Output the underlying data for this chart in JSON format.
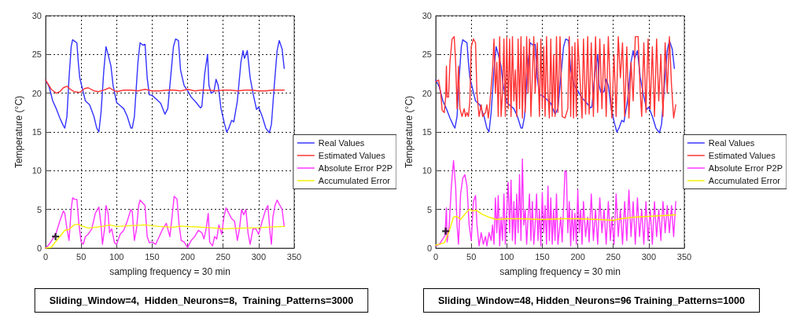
{
  "chart_data": [
    {
      "type": "line",
      "xlabel": "sampling frequency = 30 min",
      "ylabel": "Temperature (°C)",
      "xlim": [
        0,
        350
      ],
      "xticks": [
        0,
        50,
        100,
        150,
        200,
        250,
        300,
        350
      ],
      "ylim": [
        0,
        30
      ],
      "yticks": [
        0,
        5,
        10,
        15,
        20,
        25,
        30
      ],
      "grid": true,
      "legend": "right",
      "marker": "none",
      "line_style": "solid",
      "annotations": [
        "Sliding_Window=4,  Hidden_Neurons=8,  Training_Patterns=3000"
      ],
      "series": [
        {
          "name": "Real Values",
          "color": "#3333ff",
          "x": [
            0,
            5,
            10,
            15,
            20,
            25,
            27,
            30,
            33,
            36,
            38,
            41,
            44,
            46,
            48,
            52,
            56,
            62,
            68,
            72,
            75,
            78,
            82,
            85,
            88,
            92,
            95,
            100,
            105,
            110,
            115,
            120,
            122,
            125,
            130,
            133,
            137,
            140,
            143,
            146,
            150,
            155,
            162,
            168,
            172,
            176,
            180,
            183,
            187,
            190,
            195,
            200,
            205,
            212,
            218,
            220,
            224,
            228,
            230,
            233,
            237,
            240,
            243,
            247,
            252,
            255,
            258,
            262,
            265,
            270,
            275,
            278,
            280,
            284,
            288,
            292,
            297,
            300,
            305,
            310,
            315,
            318,
            322,
            326,
            329,
            333,
            336
          ],
          "values": [
            21.7,
            20.8,
            19,
            18,
            16.8,
            15.8,
            15.5,
            17,
            22,
            26,
            26.9,
            26.7,
            26.5,
            24,
            22,
            20.5,
            19,
            18.5,
            17,
            15.5,
            15,
            17.5,
            23,
            26,
            25,
            23.5,
            21,
            18.8,
            18.4,
            18,
            17,
            15.5,
            15.5,
            17,
            24,
            26.5,
            26.2,
            26.3,
            22,
            19.8,
            19.7,
            19.3,
            18.7,
            17.3,
            18,
            22,
            26,
            27,
            26.8,
            23,
            21,
            20.3,
            19.5,
            18.8,
            18.1,
            18.3,
            22.5,
            25,
            21,
            20,
            20.2,
            21.8,
            21,
            18,
            16,
            15,
            15.5,
            16.5,
            16.3,
            19,
            24,
            25.5,
            24.5,
            25.5,
            22,
            20,
            17.9,
            18.2,
            17,
            15.5,
            14.9,
            16,
            21,
            25.5,
            26.8,
            25.7,
            23.2
          ]
        },
        {
          "name": "Estimated Values",
          "color": "#ff3333",
          "x": [
            0,
            8,
            15,
            20,
            25,
            30,
            35,
            40,
            48,
            55,
            60,
            68,
            75,
            85,
            90,
            95,
            100,
            110,
            120,
            130,
            140,
            150,
            160,
            170,
            180,
            190,
            200,
            210,
            220,
            230,
            240,
            250,
            260,
            270,
            280,
            290,
            300,
            310,
            320,
            336
          ],
          "values": [
            21.7,
            20.5,
            20,
            20.2,
            20.7,
            20.9,
            20.5,
            20.2,
            20.1,
            20.6,
            20.7,
            20.3,
            20.2,
            20.5,
            20.7,
            20.4,
            20.2,
            20.4,
            20.4,
            20.3,
            20.5,
            20.3,
            20.3,
            20.4,
            20.4,
            20.3,
            20.5,
            20.3,
            20.4,
            20.4,
            20.3,
            20.4,
            20.4,
            20.3,
            20.4,
            20.4,
            20.3,
            20.3,
            20.4,
            20.4
          ]
        },
        {
          "name": "Absolute Error P2P",
          "color": "#ff33ff",
          "x": [
            0,
            5,
            10,
            15,
            20,
            25,
            27,
            30,
            33,
            36,
            38,
            41,
            44,
            47,
            50,
            53,
            56,
            60,
            65,
            70,
            75,
            78,
            80,
            83,
            85,
            88,
            90,
            93,
            97,
            100,
            105,
            110,
            115,
            120,
            122,
            125,
            128,
            131,
            133,
            137,
            140,
            143,
            146,
            150,
            155,
            160,
            165,
            170,
            172,
            175,
            178,
            181,
            185,
            188,
            191,
            195,
            200,
            205,
            210,
            215,
            220,
            223,
            226,
            229,
            231,
            235,
            238,
            241,
            244,
            248,
            251,
            254,
            258,
            262,
            266,
            270,
            273,
            276,
            279,
            282,
            285,
            288,
            292,
            296,
            300,
            305,
            310,
            313,
            316,
            318,
            320,
            323,
            326,
            330,
            333,
            336
          ],
          "values": [
            0,
            0.5,
            1.2,
            2,
            3.5,
            4.8,
            4.5,
            2.5,
            1,
            5,
            6.5,
            6.3,
            6.3,
            3,
            0.8,
            0.5,
            1.5,
            1.8,
            2.5,
            4.5,
            5.3,
            3,
            0.5,
            2.5,
            5.5,
            4.5,
            2,
            2.5,
            0.7,
            0.5,
            1.8,
            2.3,
            3.5,
            5,
            4.7,
            1,
            2.5,
            5.5,
            6.2,
            5.8,
            5.5,
            1.5,
            0.7,
            0.8,
            0.5,
            1.5,
            2.5,
            3.2,
            2.5,
            1.5,
            4,
            6.7,
            6.3,
            3,
            1,
            0.8,
            0.1,
            1,
            1.5,
            2.3,
            2,
            1.2,
            2.5,
            4.5,
            0.8,
            0.3,
            1.5,
            1.2,
            3,
            1.8,
            4,
            5.2,
            4.5,
            3.8,
            3.5,
            1,
            2.5,
            5,
            4.3,
            5,
            2,
            0.5,
            2.5,
            2.5,
            1.8,
            3.5,
            5,
            5.5,
            2,
            0.5,
            4,
            5.5,
            6.2,
            5.5,
            5,
            2.8
          ]
        },
        {
          "name": "Accumulated Error",
          "color": "#f5f000",
          "x": [
            0,
            8,
            12,
            20,
            27,
            33,
            40,
            45,
            50,
            60,
            70,
            80,
            90,
            100,
            120,
            140,
            160,
            180,
            190,
            200,
            220,
            240,
            250,
            260,
            280,
            300,
            320,
            336
          ],
          "values": [
            0,
            0.1,
            0.6,
            1.5,
            2.3,
            2.4,
            3,
            3.1,
            2.9,
            2.6,
            2.7,
            2.8,
            3,
            2.8,
            2.9,
            3,
            2.8,
            2.7,
            2.85,
            2.8,
            2.7,
            2.6,
            2.5,
            2.55,
            2.6,
            2.65,
            2.75,
            2.8
          ]
        },
        {
          "type": "scatter",
          "color": "#000000",
          "marker": "cross",
          "x": [
            14
          ],
          "values": [
            1.5
          ]
        }
      ]
    },
    {
      "type": "line",
      "xlabel": "sampling frequency = 30 min",
      "ylabel": "Temperature (°C)",
      "xlim": [
        0,
        350
      ],
      "xticks": [
        0,
        50,
        100,
        150,
        200,
        250,
        300,
        350
      ],
      "ylim": [
        0,
        30
      ],
      "yticks": [
        0,
        5,
        10,
        15,
        20,
        25,
        30
      ],
      "grid": true,
      "legend": "right",
      "marker": "none",
      "line_style": "solid",
      "annotations": [
        "Sliding_Window=48, Hidden_Neurons=96 Training_Patterns=1000"
      ],
      "series": [
        {
          "name": "Real Values",
          "color": "#3333ff",
          "x": [
            0,
            5,
            10,
            15,
            20,
            25,
            27,
            30,
            33,
            36,
            38,
            41,
            44,
            46,
            48,
            52,
            56,
            62,
            68,
            72,
            75,
            78,
            82,
            85,
            88,
            92,
            95,
            100,
            105,
            110,
            115,
            120,
            122,
            125,
            130,
            133,
            137,
            140,
            143,
            146,
            150,
            155,
            162,
            168,
            172,
            176,
            180,
            183,
            187,
            190,
            195,
            200,
            205,
            212,
            218,
            220,
            224,
            228,
            230,
            233,
            237,
            240,
            243,
            247,
            252,
            255,
            258,
            262,
            265,
            270,
            275,
            278,
            280,
            284,
            288,
            292,
            297,
            300,
            305,
            310,
            315,
            318,
            322,
            326,
            329,
            333,
            336
          ],
          "values": [
            21.7,
            20.8,
            19,
            18,
            16.8,
            15.8,
            15.5,
            17,
            22,
            26,
            26.9,
            26.7,
            26.5,
            24,
            22,
            20.5,
            19,
            18.5,
            17,
            15.5,
            15,
            17.5,
            23,
            26,
            25,
            23.5,
            21,
            18.8,
            18.4,
            18,
            17,
            15.5,
            15.5,
            17,
            24,
            26.5,
            26.2,
            26.3,
            22,
            19.8,
            19.7,
            19.3,
            18.7,
            17.3,
            18,
            22,
            26,
            27,
            26.8,
            23,
            21,
            20.3,
            19.5,
            18.8,
            18.1,
            18.3,
            22.5,
            25,
            21,
            20,
            20.2,
            21.8,
            21,
            18,
            16,
            15,
            15.5,
            16.5,
            16.3,
            19,
            24,
            25.5,
            24.5,
            25.5,
            22,
            20,
            17.9,
            18.2,
            17,
            15.5,
            14.9,
            16,
            21,
            25.5,
            26.8,
            25.7,
            23.2
          ]
        },
        {
          "name": "Estimated Values",
          "color": "#ff3333",
          "x": [
            0,
            4,
            7,
            9,
            12,
            14,
            15,
            16,
            18,
            20,
            23,
            26,
            28,
            30,
            32,
            34,
            37,
            40,
            42,
            44,
            46,
            48,
            50,
            53,
            56,
            58,
            61,
            64,
            66,
            70,
            72,
            74,
            76,
            80,
            82,
            84,
            86,
            88,
            90,
            92,
            94,
            96,
            98,
            100,
            102,
            104,
            106,
            108,
            110,
            112,
            114,
            116,
            118,
            120,
            122,
            124,
            126,
            128,
            130,
            132,
            134,
            138,
            140,
            143,
            146,
            148,
            150,
            152,
            154,
            156,
            158,
            160,
            162,
            164,
            166,
            168,
            170,
            172,
            175,
            178,
            182,
            186,
            188,
            190,
            192,
            194,
            196,
            198,
            200,
            203,
            206,
            208,
            211,
            214,
            216,
            219,
            222,
            225,
            228,
            231,
            234,
            237,
            240,
            243,
            246,
            248,
            251,
            254,
            257,
            260,
            263,
            266,
            269,
            272,
            275,
            278,
            281,
            285,
            288,
            290,
            293,
            296,
            299,
            302,
            305,
            308,
            311,
            314,
            317,
            320,
            323,
            326,
            329,
            332,
            335,
            338
          ],
          "values": [
            21.5,
            21.7,
            20,
            17.8,
            17.5,
            19.5,
            23.5,
            19.5,
            19.5,
            24,
            27,
            27.3,
            24,
            18,
            23.5,
            18,
            17,
            18,
            17,
            17.5,
            17,
            19,
            26,
            27,
            26.5,
            20,
            17,
            18.5,
            17,
            17.5,
            18.5,
            16.8,
            18.5,
            23,
            27,
            20,
            24,
            17,
            27.3,
            17,
            20,
            27,
            17,
            27.2,
            18,
            27,
            17,
            27.3,
            19,
            23,
            17,
            27,
            18,
            27.3,
            16.8,
            26,
            17.5,
            27.3,
            20,
            27,
            17,
            27.3,
            20,
            26.5,
            17,
            27,
            18,
            26,
            17,
            27.3,
            20,
            16.8,
            27,
            17,
            25,
            17,
            27.3,
            17.5,
            27.3,
            17,
            16.8,
            18,
            27.3,
            17,
            26,
            16.8,
            26.5,
            17,
            27,
            22,
            16.8,
            27,
            17.3,
            27.3,
            17.3,
            26.5,
            17,
            27.3,
            17.5,
            27,
            18,
            26.3,
            17,
            27.3,
            20,
            16.8,
            25,
            17,
            27.3,
            22,
            26.5,
            17,
            26,
            16.8,
            24,
            19,
            27.3,
            27.3,
            20,
            17,
            26.5,
            17.5,
            27,
            18,
            26,
            17,
            27,
            19,
            25,
            17,
            26.5,
            20,
            27.3,
            21,
            16.8,
            18.5
          ]
        },
        {
          "name": "Absolute Error P2P",
          "color": "#ff33ff",
          "x": [
            0,
            5,
            10,
            13,
            15,
            16,
            19,
            22,
            25,
            28,
            30,
            32,
            35,
            38,
            41,
            44,
            47,
            50,
            53,
            56,
            58,
            61,
            64,
            67,
            70,
            72,
            75,
            78,
            80,
            82,
            84,
            86,
            88,
            90,
            92,
            94,
            96,
            98,
            100,
            102,
            104,
            106,
            108,
            110,
            112,
            114,
            116,
            118,
            120,
            122,
            124,
            126,
            128,
            130,
            132,
            134,
            136,
            138,
            140,
            142,
            144,
            146,
            148,
            150,
            152,
            154,
            156,
            158,
            160,
            162,
            164,
            166,
            168,
            170,
            172,
            176,
            178,
            182,
            184,
            186,
            188,
            190,
            192,
            194,
            196,
            198,
            200,
            202,
            204,
            206,
            208,
            211,
            214,
            216,
            219,
            222,
            225,
            228,
            231,
            234,
            237,
            240,
            243,
            246,
            248,
            251,
            254,
            257,
            260,
            263,
            266,
            269,
            272,
            275,
            278,
            281,
            284,
            287,
            290,
            293,
            296,
            299,
            302,
            305,
            308,
            311,
            314,
            317,
            320,
            323,
            326,
            329,
            332,
            335,
            338
          ],
          "values": [
            0.3,
            0.5,
            1.2,
            1.6,
            5.2,
            0.8,
            3,
            8,
            11.3,
            8,
            3,
            0.5,
            7,
            9,
            9.5,
            8,
            3,
            1,
            6,
            6.8,
            3,
            0.3,
            2,
            0.5,
            1.5,
            0.3,
            2,
            1,
            3,
            0.5,
            6.5,
            2,
            6.8,
            0.3,
            4,
            1,
            7,
            0.5,
            5,
            8.5,
            2,
            8.8,
            1,
            6,
            0.5,
            7,
            2,
            9.5,
            1,
            11.5,
            3,
            5,
            0.5,
            4,
            7,
            1,
            6,
            0.5,
            3,
            7,
            1,
            5,
            0.3,
            7.2,
            2,
            5.5,
            0.5,
            8,
            1,
            6.5,
            0.5,
            5,
            1,
            7,
            0.5,
            4,
            0.8,
            10,
            9.8,
            2,
            6,
            0.3,
            5,
            1,
            4.5,
            0.5,
            7.5,
            2,
            5,
            0.5,
            6,
            1.5,
            4,
            0.8,
            7,
            1,
            5,
            0.5,
            6.5,
            2,
            5,
            0.5,
            6,
            1,
            4,
            0.5,
            7,
            1.5,
            5,
            0.5,
            6,
            1,
            7.5,
            1.5,
            6,
            0.5,
            6.5,
            1.5,
            5,
            0.5,
            6,
            1,
            5,
            0.5,
            6,
            1.5,
            5,
            1,
            6,
            2,
            5.5,
            2,
            5.5,
            1.5,
            6
          ]
        },
        {
          "name": "Accumulated Error",
          "color": "#f5f000",
          "x": [
            0,
            5,
            12,
            15,
            20,
            25,
            30,
            35,
            42,
            47,
            52,
            57,
            65,
            75,
            85,
            100,
            120,
            150,
            180,
            200,
            230,
            250,
            260,
            280,
            300,
            320,
            338
          ],
          "values": [
            0.4,
            0.5,
            0.7,
            1.3,
            2.5,
            4,
            4.1,
            3.7,
            4.5,
            5,
            4.8,
            4.9,
            4.4,
            4,
            3.7,
            3.8,
            3.8,
            3.7,
            3.8,
            3.8,
            3.7,
            3.6,
            3.8,
            4,
            4.1,
            4.2,
            4.3
          ]
        },
        {
          "type": "scatter",
          "color": "#000000",
          "marker": "cross",
          "x": [
            14
          ],
          "values": [
            2.2
          ]
        }
      ]
    }
  ]
}
